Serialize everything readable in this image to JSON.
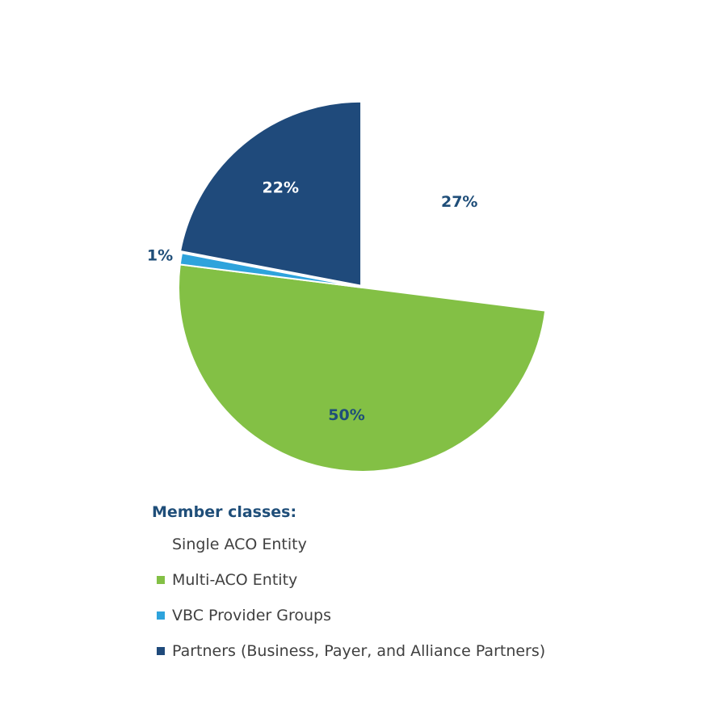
{
  "chart_data": {
    "type": "pie",
    "legend_title": "Member classes:",
    "legend_position": "bottom",
    "slices": [
      {
        "name": "Single ACO Entity",
        "value": 27,
        "label": "27%",
        "color": "#ffffff"
      },
      {
        "name": "Multi-ACO Entity",
        "value": 50,
        "label": "50%",
        "color": "#83c045"
      },
      {
        "name": "VBC Provider Groups",
        "value": 1,
        "label": "1%",
        "color": "#2ea3dc"
      },
      {
        "name": "Partners (Business, Payer, and Alliance Partners)",
        "value": 22,
        "label": "22%",
        "color": "#1f4a7b"
      }
    ],
    "label_color": "#1f4e79",
    "start_angle": "12 o'clock",
    "direction": "clockwise",
    "exploded_slice": "Partners (Business, Payer, and Alliance Partners)"
  }
}
